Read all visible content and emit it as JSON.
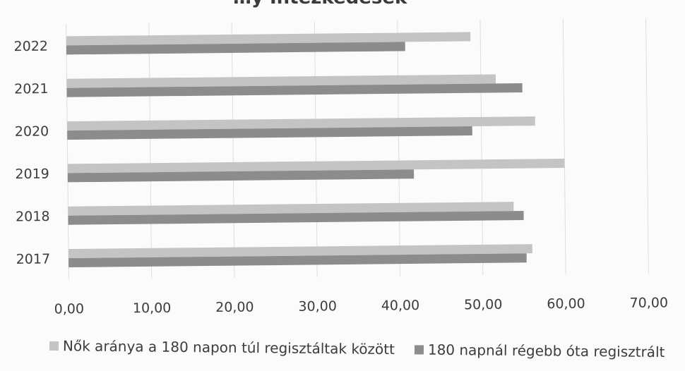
{
  "chart_data": {
    "type": "bar",
    "orientation": "horizontal",
    "title": "…y Intézkedések",
    "categories": [
      "2017",
      "2018",
      "2019",
      "2020",
      "2021",
      "2022"
    ],
    "series": [
      {
        "name": "Nők aránya a 180 napon túl regisztáltak között",
        "color": "#c4c4c4",
        "values": [
          56.0,
          53.8,
          60.0,
          56.5,
          51.8,
          48.8
        ]
      },
      {
        "name": "180 napnál régebb óta regisztrált",
        "color": "#8c8c8c",
        "values": [
          55.3,
          55.0,
          41.8,
          48.9,
          55.0,
          40.9
        ]
      }
    ],
    "xlim": [
      0,
      70
    ],
    "xticks": [
      "0,00",
      "10,00",
      "20,00",
      "30,00",
      "40,00",
      "50,00",
      "60,00",
      "70,00"
    ],
    "grid": true,
    "legend_position": "bottom"
  }
}
